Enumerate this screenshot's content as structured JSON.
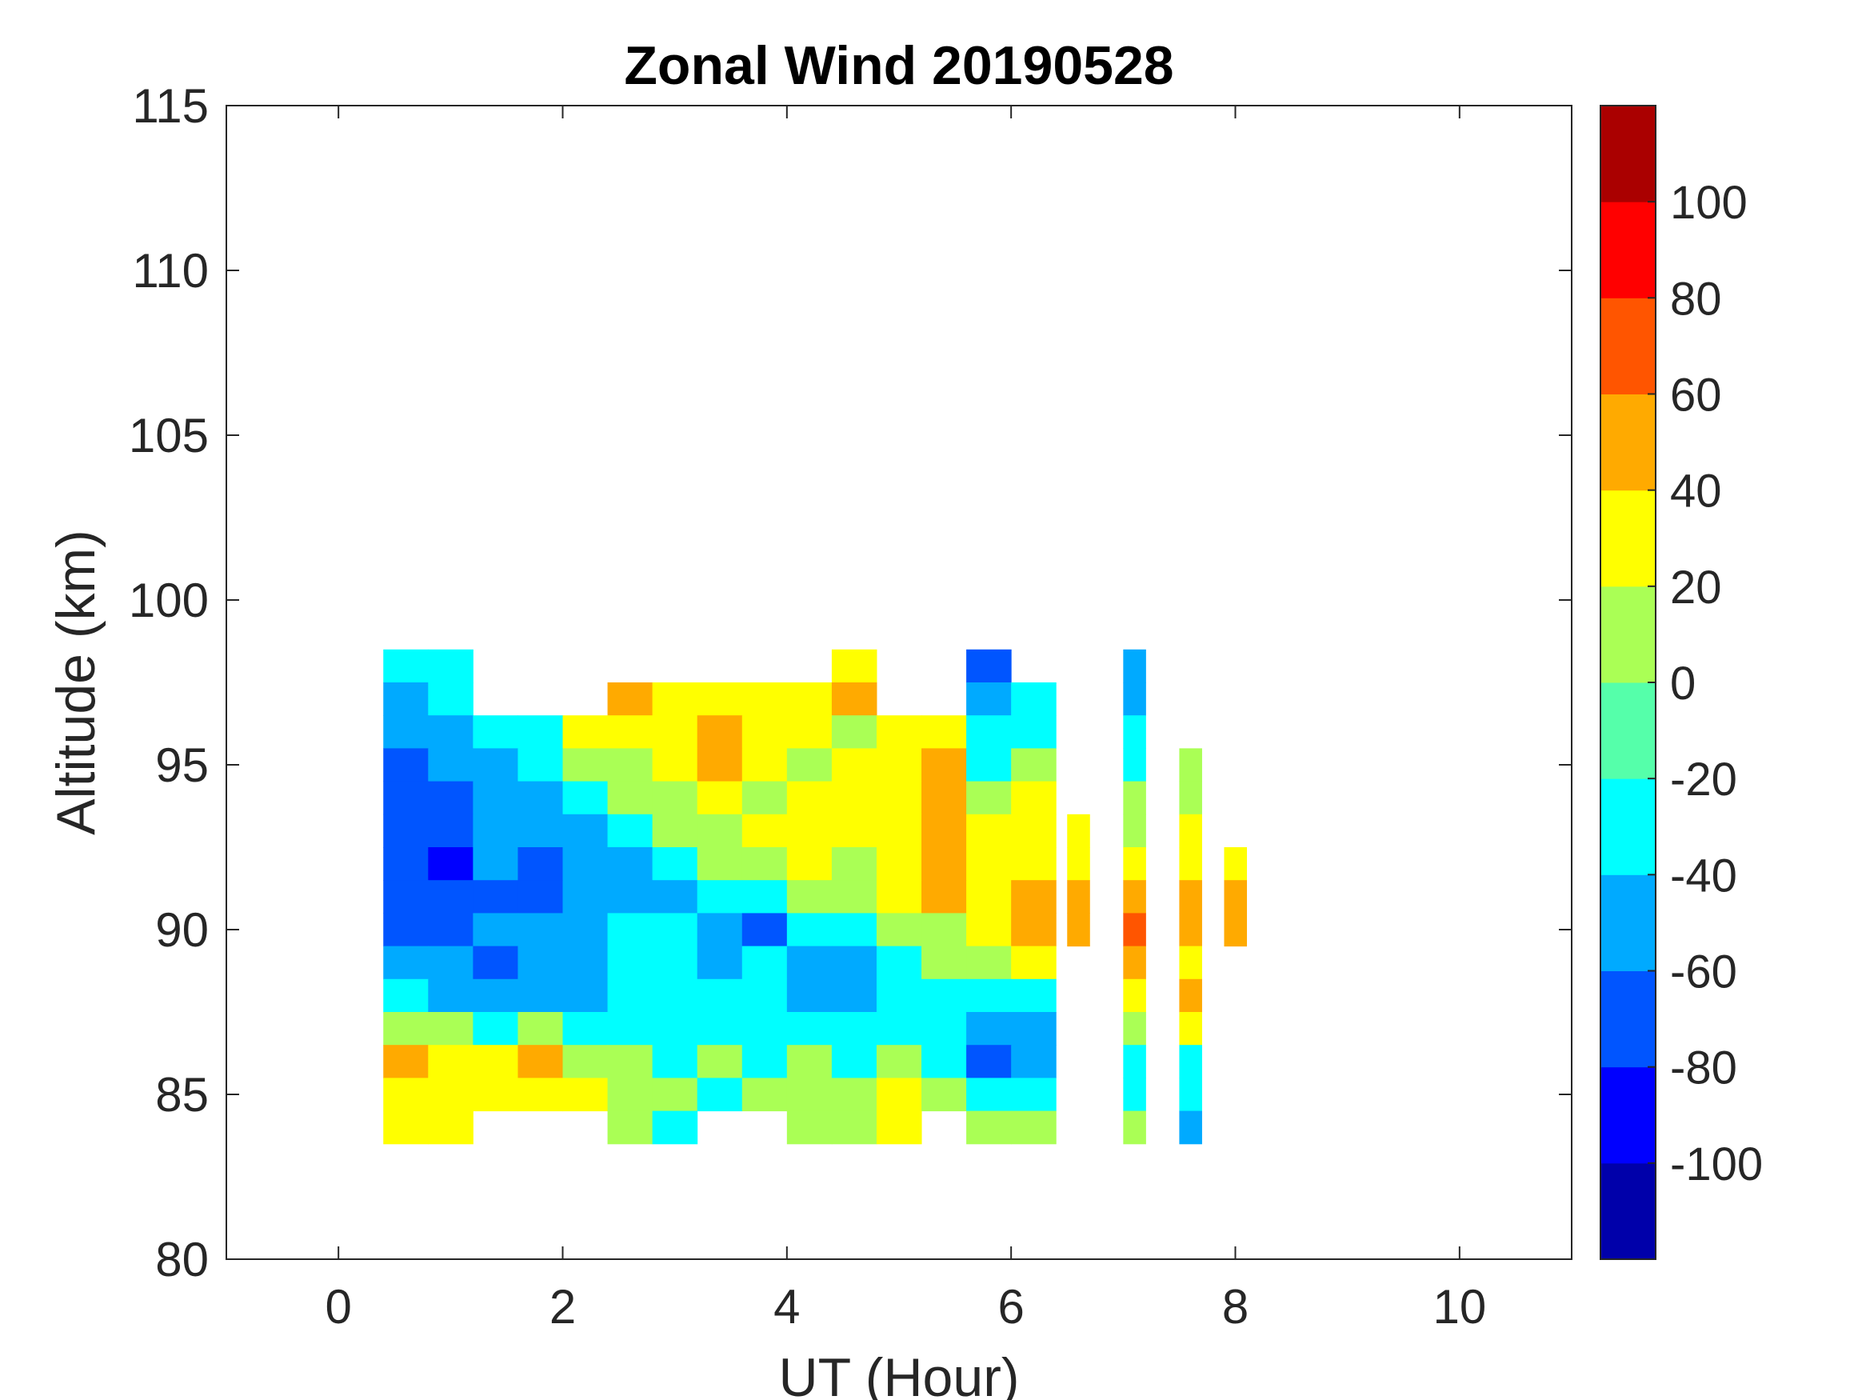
{
  "chart_data": {
    "type": "heatmap",
    "subtype": "filled-contour",
    "title": "Zonal Wind 20190528",
    "xlabel": "UT (Hour)",
    "ylabel": "Altitude (km)",
    "xlim": [
      -1,
      11
    ],
    "ylim": [
      80,
      115
    ],
    "xticks": [
      0,
      2,
      4,
      6,
      8,
      10
    ],
    "yticks": [
      80,
      85,
      90,
      95,
      100,
      105,
      110,
      115
    ],
    "grid": false,
    "colorbar": {
      "position": "right",
      "range": [
        -120,
        120
      ],
      "ticks": [
        -100,
        -80,
        -60,
        -40,
        -20,
        0,
        20,
        40,
        60,
        80,
        100
      ],
      "levels": [
        -120,
        -100,
        -80,
        -60,
        -40,
        -20,
        0,
        20,
        40,
        60,
        80,
        100,
        120
      ],
      "colors": [
        "#0000aa",
        "#0000ff",
        "#0055ff",
        "#00aaff",
        "#00ffff",
        "#55ffaa",
        "#aaff55",
        "#ffff00",
        "#ffaa00",
        "#ff5500",
        "#ff0000",
        "#aa0000"
      ]
    },
    "x": [
      0.6,
      1.0,
      1.4,
      1.8,
      2.2,
      2.6,
      3.0,
      3.4,
      3.8,
      4.2,
      4.6,
      5.0,
      5.4,
      5.8,
      6.2,
      6.6,
      7.1,
      7.6,
      8.0
    ],
    "y": [
      98,
      97,
      96,
      95,
      94,
      93,
      92,
      91,
      90,
      89,
      88,
      87,
      86,
      85,
      84
    ],
    "z": [
      [
        -30,
        -30,
        null,
        null,
        null,
        null,
        null,
        null,
        null,
        null,
        30,
        null,
        null,
        -70,
        null,
        null,
        -50,
        null,
        null
      ],
      [
        -50,
        -30,
        null,
        null,
        null,
        50,
        30,
        30,
        30,
        30,
        50,
        null,
        null,
        -50,
        -30,
        null,
        -50,
        null,
        null
      ],
      [
        -50,
        -50,
        -30,
        -30,
        30,
        30,
        30,
        50,
        30,
        30,
        10,
        30,
        30,
        -30,
        -30,
        null,
        -30,
        null,
        null
      ],
      [
        -70,
        -50,
        -50,
        -30,
        10,
        10,
        30,
        50,
        30,
        10,
        30,
        30,
        50,
        -30,
        10,
        null,
        -30,
        10,
        null
      ],
      [
        -70,
        -70,
        -50,
        -50,
        -30,
        10,
        10,
        30,
        10,
        30,
        30,
        30,
        50,
        10,
        30,
        null,
        10,
        10,
        null
      ],
      [
        -70,
        -70,
        -50,
        -50,
        -50,
        -30,
        10,
        10,
        30,
        30,
        30,
        30,
        50,
        30,
        30,
        30,
        10,
        30,
        null
      ],
      [
        -70,
        -90,
        -50,
        -70,
        -50,
        -50,
        -30,
        10,
        10,
        30,
        10,
        30,
        50,
        30,
        30,
        30,
        30,
        30,
        30
      ],
      [
        -70,
        -70,
        -70,
        -70,
        -50,
        -50,
        -50,
        -30,
        -30,
        10,
        10,
        30,
        50,
        30,
        50,
        50,
        50,
        50,
        50
      ],
      [
        -70,
        -70,
        -50,
        -50,
        -50,
        -30,
        -30,
        -50,
        -70,
        -30,
        -30,
        10,
        10,
        30,
        50,
        50,
        70,
        50,
        50
      ],
      [
        -50,
        -50,
        -70,
        -50,
        -50,
        -30,
        -30,
        -50,
        -30,
        -50,
        -50,
        -30,
        10,
        10,
        30,
        null,
        50,
        30,
        null
      ],
      [
        -30,
        -50,
        -50,
        -50,
        -50,
        -30,
        -30,
        -30,
        -30,
        -50,
        -50,
        -30,
        -30,
        -30,
        -30,
        null,
        30,
        50,
        null
      ],
      [
        10,
        10,
        -30,
        10,
        -30,
        -30,
        -30,
        -30,
        -30,
        -30,
        -30,
        -30,
        -30,
        -50,
        -50,
        null,
        10,
        30,
        null
      ],
      [
        50,
        30,
        30,
        50,
        10,
        10,
        -30,
        10,
        -30,
        10,
        -30,
        10,
        -30,
        -70,
        -50,
        null,
        -30,
        -30,
        null
      ],
      [
        30,
        30,
        30,
        30,
        30,
        10,
        10,
        -30,
        10,
        10,
        10,
        30,
        10,
        -30,
        -30,
        null,
        -30,
        -30,
        null
      ],
      [
        30,
        30,
        null,
        null,
        null,
        10,
        -30,
        null,
        null,
        10,
        10,
        30,
        null,
        10,
        10,
        null,
        10,
        -50,
        null
      ]
    ]
  }
}
